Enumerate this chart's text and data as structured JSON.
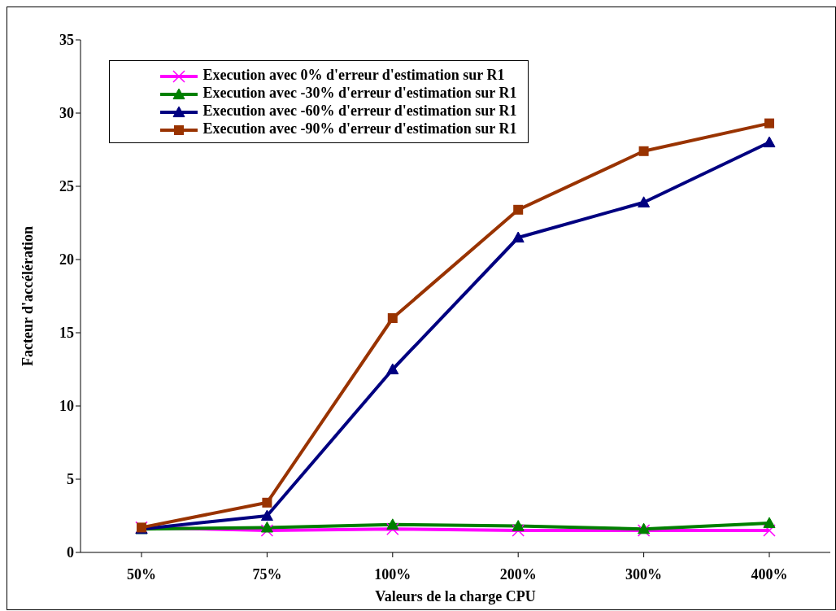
{
  "chart_data": {
    "type": "line",
    "xlabel": "Valeurs de la charge CPU",
    "ylabel": "Facteur d'accélération",
    "categories": [
      "50%",
      "75%",
      "100%",
      "200%",
      "300%",
      "400%"
    ],
    "series": [
      {
        "name": "Execution avec 0% d'erreur d'estimation sur R1",
        "color": "#ff00ff",
        "marker": "cross",
        "values": [
          1.7,
          1.5,
          1.6,
          1.5,
          1.5,
          1.5
        ]
      },
      {
        "name": "Execution avec -30% d'erreur d'estimation sur R1",
        "color": "#008000",
        "marker": "triangle",
        "values": [
          1.6,
          1.7,
          1.9,
          1.8,
          1.6,
          2.0
        ]
      },
      {
        "name": "Execution avec -60% d'erreur d'estimation sur R1",
        "color": "#000080",
        "marker": "triangle",
        "values": [
          1.6,
          2.5,
          12.5,
          21.5,
          23.9,
          28.0
        ]
      },
      {
        "name": "Execution avec -90% d'erreur d'estimation sur R1",
        "color": "#993300",
        "marker": "square",
        "values": [
          1.7,
          3.4,
          16.0,
          23.4,
          27.4,
          29.3
        ]
      }
    ],
    "ylim": [
      0,
      35
    ],
    "yticks": [
      0,
      5,
      10,
      15,
      20,
      25,
      30,
      35
    ],
    "grid": false,
    "legend": "top left",
    "line_style": "solid"
  }
}
